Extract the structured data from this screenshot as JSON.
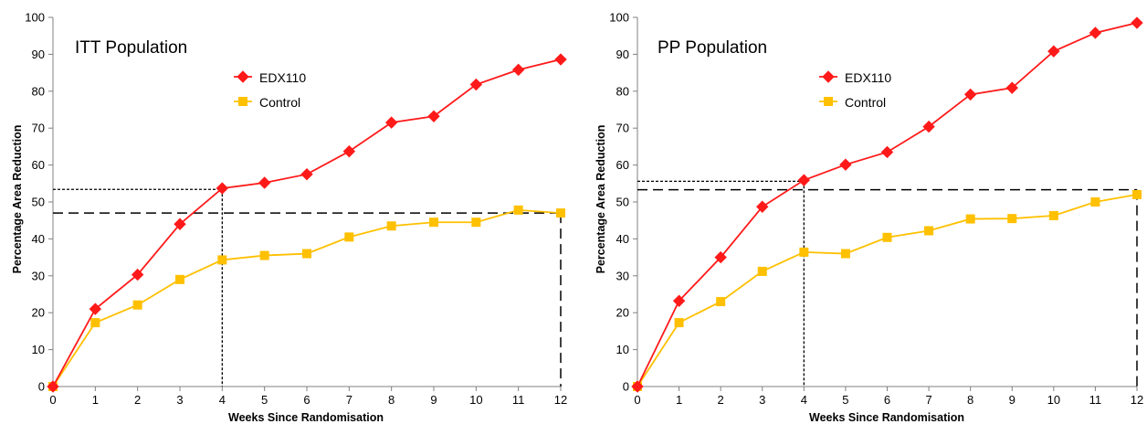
{
  "chart_data": [
    {
      "type": "line",
      "title": "ITT Population",
      "xlabel": "Weeks Since Randomisation",
      "ylabel": "Percentage Area Reduction",
      "xlim": [
        0,
        12
      ],
      "ylim": [
        0,
        100
      ],
      "x_ticks": [
        "0",
        "1",
        "2",
        "3",
        "4",
        "5",
        "6",
        "7",
        "8",
        "9",
        "10",
        "11",
        "12"
      ],
      "y_ticks": [
        "0",
        "10",
        "20",
        "30",
        "40",
        "50",
        "60",
        "70",
        "80",
        "90",
        "100"
      ],
      "x": [
        0,
        1,
        2,
        3,
        4,
        5,
        6,
        7,
        8,
        9,
        10,
        11,
        12
      ],
      "series": [
        {
          "name": "EDX110",
          "color": "#ff1a1a",
          "marker": "diamond",
          "values": [
            0,
            21,
            30.3,
            44,
            53.7,
            55.2,
            57.5,
            63.7,
            71.5,
            73.2,
            81.8,
            85.8,
            88.6
          ]
        },
        {
          "name": "Control",
          "color": "#ffc000",
          "marker": "square",
          "values": [
            0,
            17.3,
            22.1,
            29,
            34.3,
            35.5,
            36,
            40.5,
            43.5,
            44.5,
            44.5,
            47.8,
            47
          ]
        }
      ],
      "reference_lines": [
        {
          "x": 4,
          "y": 53.4,
          "style": "dotted"
        },
        {
          "x": 12,
          "y": 47,
          "style": "dashed"
        }
      ],
      "legend_position": "top-center",
      "grid": false
    },
    {
      "type": "line",
      "title": "PP Population",
      "xlabel": "Weeks Since Randomisation",
      "ylabel": "Percentage Area Reduction",
      "xlim": [
        0,
        12
      ],
      "ylim": [
        0,
        100
      ],
      "x_ticks": [
        "0",
        "1",
        "2",
        "3",
        "4",
        "5",
        "6",
        "7",
        "8",
        "9",
        "10",
        "11",
        "12"
      ],
      "y_ticks": [
        "0",
        "10",
        "20",
        "30",
        "40",
        "50",
        "60",
        "70",
        "80",
        "90",
        "100"
      ],
      "x": [
        0,
        1,
        2,
        3,
        4,
        5,
        6,
        7,
        8,
        9,
        10,
        11,
        12
      ],
      "series": [
        {
          "name": "EDX110",
          "color": "#ff1a1a",
          "marker": "diamond",
          "values": [
            0,
            23.2,
            35,
            48.7,
            55.9,
            60.1,
            63.5,
            70.4,
            79.1,
            80.9,
            90.8,
            95.8,
            98.5
          ]
        },
        {
          "name": "Control",
          "color": "#ffc000",
          "marker": "square",
          "values": [
            0,
            17.3,
            23,
            31.2,
            36.4,
            36,
            40.4,
            42.2,
            45.4,
            45.5,
            46.3,
            50,
            52
          ]
        }
      ],
      "reference_lines": [
        {
          "x": 4,
          "y": 55.6,
          "style": "dotted"
        },
        {
          "x": 12,
          "y": 53.3,
          "style": "dashed"
        }
      ],
      "legend_position": "top-center",
      "grid": false
    }
  ]
}
